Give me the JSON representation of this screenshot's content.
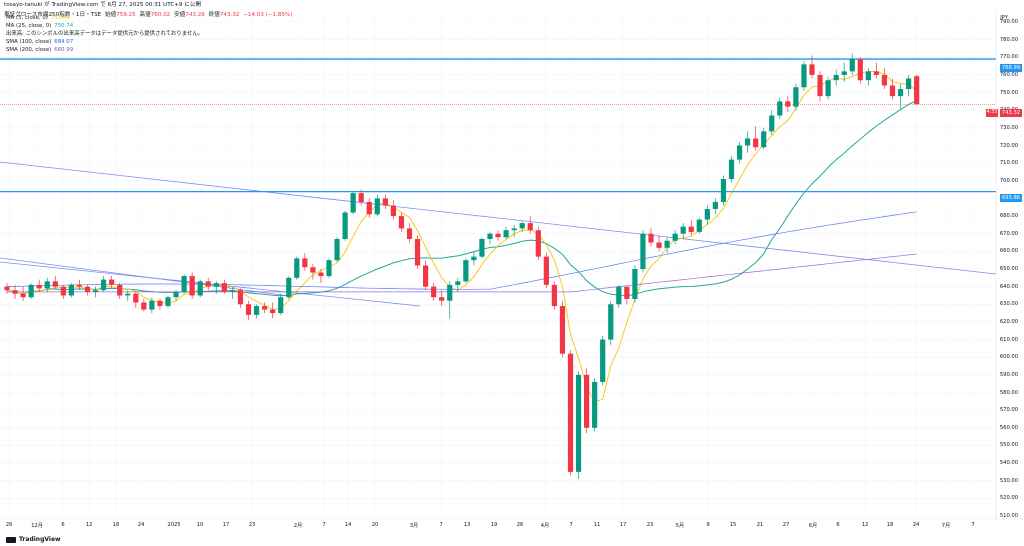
{
  "header": {
    "author_line": "tosayo-tanuki が TradingView.com で 6月 27, 2025 00:31 UTC+9 に公開",
    "symbol_line": "東証グロース市場250指数・1日・TSE",
    "o_label": "始値",
    "o_val": "759.25",
    "h_label": "高値",
    "h_val": "760.02",
    "l_label": "安値",
    "l_val": "743.28",
    "c_label": "終値",
    "c_val": "743.32",
    "chg_val": "−14.03 (−1.85%)"
  },
  "indicators": [
    {
      "label": "MA (5, close, 0)",
      "value": "753.64",
      "color": "#f7c600"
    },
    {
      "label": "MA (25, close, 0)",
      "value": "750.74",
      "color": "#26a69a"
    },
    {
      "label": "出来高: このシンボルの出来高データはデータ提供元から提供されておりません。",
      "value": "",
      "color": "#131722"
    },
    {
      "label": "SMA (100, close)",
      "value": "684.07",
      "color": "#2962ff"
    },
    {
      "label": "SMA (200, close)",
      "value": "660.99",
      "color": "#7e57c2"
    }
  ],
  "axis": {
    "currency": "JPY",
    "y_ticks": [
      "790.00",
      "780.00",
      "770.00",
      "760.00",
      "750.00",
      "740.00",
      "730.00",
      "720.00",
      "710.00",
      "700.00",
      "690.00",
      "680.00",
      "670.00",
      "660.00",
      "650.00",
      "640.00",
      "630.00",
      "620.00",
      "610.00",
      "600.00",
      "590.00",
      "580.00",
      "570.00",
      "560.00",
      "550.00",
      "540.00",
      "530.00",
      "520.00",
      "510.00"
    ],
    "x_ticks": [
      "26",
      "12月",
      "6",
      "12",
      "18",
      "24",
      "2025",
      "10",
      "17",
      "23",
      "2月",
      "7",
      "14",
      "20",
      "3月",
      "7",
      "13",
      "19",
      "26",
      "4月",
      "7",
      "11",
      "17",
      "23",
      "5月",
      "9",
      "15",
      "21",
      "27",
      "6月",
      "6",
      "12",
      "18",
      "24",
      "7月",
      "7"
    ]
  },
  "price_badges": {
    "resistance": "768.99",
    "support": "693.86",
    "last": "743.32",
    "last_tag": "4:35"
  },
  "colors": {
    "up": "#089981",
    "down": "#f23645",
    "ma5": "#f7c600",
    "ma25": "#26a69a",
    "sma100": "#5b7bff",
    "sma200": "#9c6ade",
    "hline": "#2196f3",
    "trend": "#7b8cf0"
  },
  "chart_data": {
    "type": "candlestick",
    "ylim": [
      505,
      795
    ],
    "last_price": 743.32,
    "horizontal_lines": [
      768.99,
      693.86
    ],
    "candles": [
      [
        0,
        640,
        642,
        636,
        638
      ],
      [
        1,
        638,
        641,
        633,
        636
      ],
      [
        2,
        636,
        640,
        632,
        634
      ],
      [
        3,
        634,
        642,
        633,
        641
      ],
      [
        4,
        641,
        644,
        637,
        639
      ],
      [
        5,
        639,
        645,
        637,
        643
      ],
      [
        6,
        643,
        646,
        639,
        640
      ],
      [
        7,
        640,
        641,
        633,
        635
      ],
      [
        8,
        635,
        642,
        634,
        641
      ],
      [
        9,
        641,
        644,
        638,
        640
      ],
      [
        10,
        640,
        641,
        635,
        637
      ],
      [
        11,
        637,
        640,
        634,
        638
      ],
      [
        12,
        638,
        646,
        637,
        644
      ],
      [
        13,
        644,
        646,
        639,
        641
      ],
      [
        14,
        641,
        642,
        633,
        635
      ],
      [
        15,
        635,
        638,
        632,
        636
      ],
      [
        16,
        636,
        637,
        628,
        631
      ],
      [
        17,
        631,
        633,
        626,
        627
      ],
      [
        18,
        627,
        634,
        625,
        632
      ],
      [
        19,
        632,
        633,
        627,
        629
      ],
      [
        20,
        629,
        635,
        628,
        634
      ],
      [
        21,
        634,
        638,
        632,
        637
      ],
      [
        22,
        637,
        647,
        636,
        646
      ],
      [
        23,
        646,
        648,
        633,
        635
      ],
      [
        24,
        635,
        644,
        634,
        643
      ],
      [
        25,
        643,
        645,
        638,
        640
      ],
      [
        26,
        640,
        643,
        636,
        642
      ],
      [
        27,
        642,
        644,
        636,
        637
      ],
      [
        28,
        637,
        640,
        633,
        638
      ],
      [
        29,
        638,
        639,
        628,
        630
      ],
      [
        30,
        630,
        632,
        621,
        624
      ],
      [
        31,
        624,
        630,
        622,
        629
      ],
      [
        32,
        629,
        631,
        625,
        627
      ],
      [
        33,
        627,
        631,
        622,
        625
      ],
      [
        34,
        625,
        636,
        624,
        634
      ],
      [
        35,
        634,
        646,
        633,
        645
      ],
      [
        36,
        645,
        657,
        644,
        656
      ],
      [
        37,
        656,
        659,
        649,
        651
      ],
      [
        38,
        651,
        653,
        644,
        648
      ],
      [
        39,
        648,
        650,
        642,
        646
      ],
      [
        40,
        646,
        656,
        645,
        655
      ],
      [
        41,
        655,
        668,
        654,
        667
      ],
      [
        42,
        667,
        683,
        666,
        682
      ],
      [
        43,
        682,
        694,
        681,
        693
      ],
      [
        44,
        693,
        695,
        686,
        688
      ],
      [
        45,
        688,
        690,
        679,
        681
      ],
      [
        46,
        681,
        692,
        680,
        690
      ],
      [
        47,
        690,
        692,
        684,
        686
      ],
      [
        48,
        686,
        689,
        678,
        680
      ],
      [
        49,
        680,
        682,
        671,
        673
      ],
      [
        50,
        673,
        676,
        665,
        667
      ],
      [
        51,
        667,
        669,
        650,
        652
      ],
      [
        52,
        652,
        655,
        638,
        640
      ],
      [
        53,
        640,
        642,
        632,
        634
      ],
      [
        54,
        634,
        638,
        629,
        632
      ],
      [
        55,
        632,
        643,
        622,
        641
      ],
      [
        56,
        641,
        645,
        637,
        643
      ],
      [
        57,
        643,
        656,
        642,
        655
      ],
      [
        58,
        655,
        660,
        652,
        657
      ],
      [
        59,
        657,
        668,
        656,
        667
      ],
      [
        60,
        667,
        671,
        664,
        670
      ],
      [
        61,
        670,
        672,
        666,
        668
      ],
      [
        62,
        668,
        674,
        667,
        672
      ],
      [
        63,
        672,
        675,
        668,
        673
      ],
      [
        64,
        673,
        677,
        671,
        676
      ],
      [
        65,
        676,
        680,
        670,
        672
      ],
      [
        66,
        672,
        674,
        655,
        657
      ],
      [
        67,
        657,
        659,
        639,
        641
      ],
      [
        68,
        641,
        643,
        627,
        629
      ],
      [
        69,
        629,
        632,
        600,
        602
      ],
      [
        70,
        602,
        604,
        533,
        535
      ],
      [
        71,
        535,
        592,
        531,
        590
      ],
      [
        72,
        590,
        594,
        557,
        560
      ],
      [
        73,
        560,
        588,
        558,
        586
      ],
      [
        74,
        586,
        612,
        584,
        610
      ],
      [
        75,
        610,
        632,
        607,
        630
      ],
      [
        76,
        630,
        641,
        628,
        640
      ],
      [
        77,
        640,
        640,
        630,
        633
      ],
      [
        78,
        633,
        652,
        631,
        650
      ],
      [
        79,
        650,
        672,
        648,
        670
      ],
      [
        80,
        670,
        673,
        663,
        665
      ],
      [
        81,
        665,
        669,
        660,
        662
      ],
      [
        82,
        662,
        668,
        659,
        666
      ],
      [
        83,
        666,
        672,
        664,
        670
      ],
      [
        84,
        670,
        676,
        667,
        674
      ],
      [
        85,
        674,
        678,
        669,
        671
      ],
      [
        86,
        671,
        679,
        670,
        678
      ],
      [
        87,
        678,
        686,
        675,
        684
      ],
      [
        88,
        684,
        690,
        681,
        688
      ],
      [
        89,
        688,
        703,
        686,
        701
      ],
      [
        90,
        701,
        714,
        699,
        712
      ],
      [
        91,
        712,
        722,
        710,
        720
      ],
      [
        92,
        720,
        728,
        716,
        724
      ],
      [
        93,
        724,
        731,
        717,
        719
      ],
      [
        94,
        719,
        730,
        718,
        728
      ],
      [
        95,
        728,
        740,
        726,
        737
      ],
      [
        96,
        737,
        747,
        735,
        745
      ],
      [
        97,
        745,
        748,
        739,
        742
      ],
      [
        98,
        742,
        755,
        740,
        753
      ],
      [
        99,
        753,
        768,
        751,
        766
      ],
      [
        100,
        766,
        771,
        758,
        760
      ],
      [
        101,
        760,
        762,
        745,
        748
      ],
      [
        102,
        748,
        759,
        746,
        757
      ],
      [
        103,
        757,
        763,
        754,
        760
      ],
      [
        104,
        760,
        767,
        756,
        762
      ],
      [
        105,
        762,
        772,
        760,
        769
      ],
      [
        106,
        769,
        770,
        755,
        757
      ],
      [
        107,
        757,
        764,
        754,
        762
      ],
      [
        108,
        762,
        767,
        758,
        760
      ],
      [
        109,
        760,
        764,
        752,
        754
      ],
      [
        110,
        754,
        758,
        746,
        748
      ],
      [
        111,
        748,
        755,
        741,
        752
      ],
      [
        112,
        752,
        760,
        748,
        758
      ],
      [
        113,
        759.25,
        760.02,
        743.28,
        743.32
      ]
    ]
  }
}
